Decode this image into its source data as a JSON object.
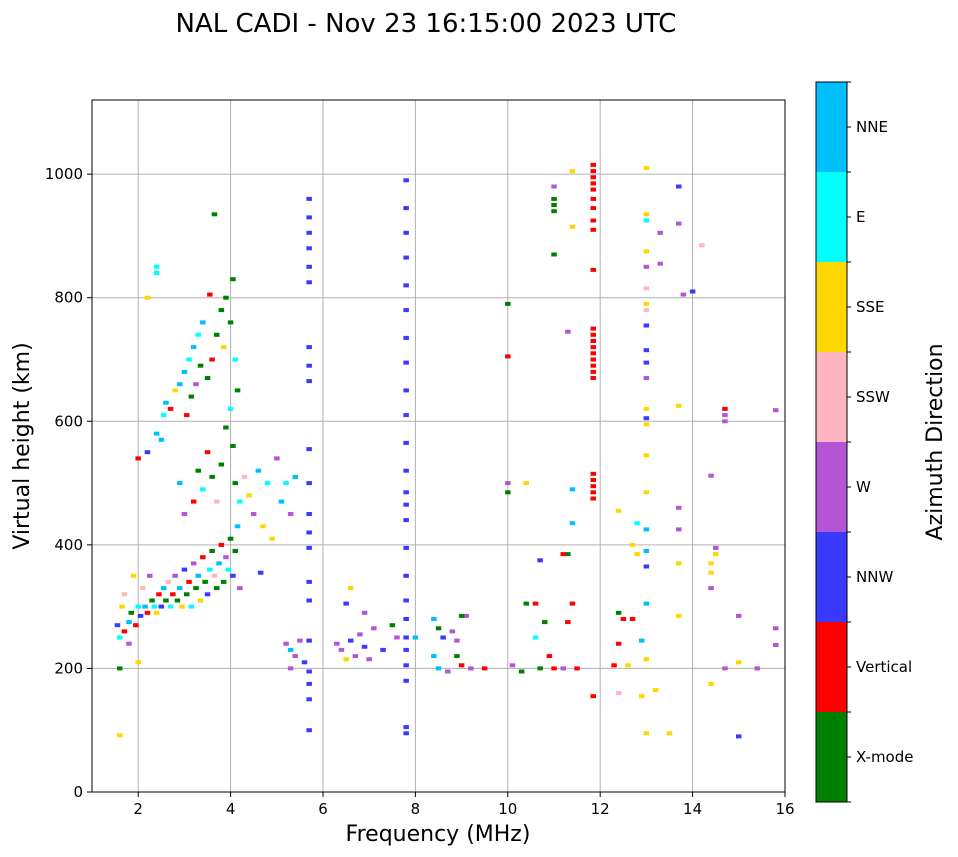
{
  "chart_data": {
    "type": "scatter",
    "title": "NAL CADI - Nov 23 16:15:00 2023 UTC",
    "xlabel": "Frequency (MHz)",
    "ylabel": "Virtual height (km)",
    "xlim": [
      1.0,
      16.0
    ],
    "ylim": [
      0,
      1120
    ],
    "xticks": [
      2,
      4,
      6,
      8,
      10,
      12,
      14,
      16
    ],
    "yticks": [
      0,
      200,
      400,
      600,
      800,
      1000
    ],
    "grid": true,
    "colorbar": {
      "label": "Azimuth Direction",
      "categories": [
        {
          "name": "X-mode",
          "color": "#008000"
        },
        {
          "name": "Vertical",
          "color": "#ff0000"
        },
        {
          "name": "NNW",
          "color": "#3a3aff"
        },
        {
          "name": "W",
          "color": "#b455d6"
        },
        {
          "name": "SSW",
          "color": "#ffb6c1"
        },
        {
          "name": "SSE",
          "color": "#ffd700"
        },
        {
          "name": "E",
          "color": "#00ffff"
        },
        {
          "name": "NNE",
          "color": "#00bfff"
        }
      ]
    },
    "points": [
      {
        "f": 1.6,
        "h": 92,
        "c": 5
      },
      {
        "f": 1.6,
        "h": 200,
        "c": 0
      },
      {
        "f": 1.55,
        "h": 270,
        "c": 2
      },
      {
        "f": 1.6,
        "h": 250,
        "c": 6
      },
      {
        "f": 1.65,
        "h": 300,
        "c": 5
      },
      {
        "f": 1.7,
        "h": 260,
        "c": 1
      },
      {
        "f": 1.7,
        "h": 320,
        "c": 4
      },
      {
        "f": 1.8,
        "h": 275,
        "c": 7
      },
      {
        "f": 1.8,
        "h": 240,
        "c": 3
      },
      {
        "f": 1.85,
        "h": 290,
        "c": 0
      },
      {
        "f": 1.9,
        "h": 350,
        "c": 5
      },
      {
        "f": 1.95,
        "h": 270,
        "c": 1
      },
      {
        "f": 2.0,
        "h": 210,
        "c": 5
      },
      {
        "f": 2.0,
        "h": 300,
        "c": 6
      },
      {
        "f": 2.05,
        "h": 285,
        "c": 2
      },
      {
        "f": 2.1,
        "h": 330,
        "c": 4
      },
      {
        "f": 2.15,
        "h": 300,
        "c": 7
      },
      {
        "f": 2.2,
        "h": 290,
        "c": 1
      },
      {
        "f": 2.25,
        "h": 350,
        "c": 3
      },
      {
        "f": 2.3,
        "h": 310,
        "c": 0
      },
      {
        "f": 2.35,
        "h": 300,
        "c": 6
      },
      {
        "f": 2.4,
        "h": 290,
        "c": 5
      },
      {
        "f": 2.45,
        "h": 320,
        "c": 1
      },
      {
        "f": 2.5,
        "h": 300,
        "c": 2
      },
      {
        "f": 2.55,
        "h": 330,
        "c": 7
      },
      {
        "f": 2.6,
        "h": 310,
        "c": 0
      },
      {
        "f": 2.65,
        "h": 340,
        "c": 4
      },
      {
        "f": 2.7,
        "h": 300,
        "c": 6
      },
      {
        "f": 2.75,
        "h": 320,
        "c": 1
      },
      {
        "f": 2.8,
        "h": 350,
        "c": 3
      },
      {
        "f": 2.85,
        "h": 310,
        "c": 0
      },
      {
        "f": 2.9,
        "h": 330,
        "c": 7
      },
      {
        "f": 2.95,
        "h": 300,
        "c": 5
      },
      {
        "f": 3.0,
        "h": 360,
        "c": 2
      },
      {
        "f": 3.05,
        "h": 320,
        "c": 0
      },
      {
        "f": 3.1,
        "h": 340,
        "c": 1
      },
      {
        "f": 3.15,
        "h": 300,
        "c": 6
      },
      {
        "f": 3.2,
        "h": 370,
        "c": 3
      },
      {
        "f": 3.25,
        "h": 330,
        "c": 0
      },
      {
        "f": 3.3,
        "h": 350,
        "c": 7
      },
      {
        "f": 3.35,
        "h": 310,
        "c": 5
      },
      {
        "f": 3.4,
        "h": 380,
        "c": 1
      },
      {
        "f": 3.45,
        "h": 340,
        "c": 0
      },
      {
        "f": 3.5,
        "h": 320,
        "c": 2
      },
      {
        "f": 3.55,
        "h": 360,
        "c": 6
      },
      {
        "f": 3.6,
        "h": 390,
        "c": 0
      },
      {
        "f": 3.65,
        "h": 350,
        "c": 4
      },
      {
        "f": 3.7,
        "h": 330,
        "c": 0
      },
      {
        "f": 3.75,
        "h": 370,
        "c": 7
      },
      {
        "f": 3.8,
        "h": 400,
        "c": 1
      },
      {
        "f": 3.85,
        "h": 340,
        "c": 0
      },
      {
        "f": 3.9,
        "h": 380,
        "c": 3
      },
      {
        "f": 3.95,
        "h": 360,
        "c": 6
      },
      {
        "f": 4.0,
        "h": 410,
        "c": 0
      },
      {
        "f": 4.05,
        "h": 350,
        "c": 2
      },
      {
        "f": 4.1,
        "h": 390,
        "c": 0
      },
      {
        "f": 4.15,
        "h": 430,
        "c": 7
      },
      {
        "f": 4.2,
        "h": 330,
        "c": 3
      },
      {
        "f": 2.0,
        "h": 540,
        "c": 1
      },
      {
        "f": 2.2,
        "h": 550,
        "c": 2
      },
      {
        "f": 2.4,
        "h": 580,
        "c": 7
      },
      {
        "f": 2.5,
        "h": 570,
        "c": 7
      },
      {
        "f": 2.55,
        "h": 610,
        "c": 6
      },
      {
        "f": 2.6,
        "h": 630,
        "c": 7
      },
      {
        "f": 2.7,
        "h": 620,
        "c": 1
      },
      {
        "f": 2.8,
        "h": 650,
        "c": 5
      },
      {
        "f": 2.9,
        "h": 660,
        "c": 7
      },
      {
        "f": 3.0,
        "h": 680,
        "c": 7
      },
      {
        "f": 3.05,
        "h": 610,
        "c": 1
      },
      {
        "f": 3.1,
        "h": 700,
        "c": 6
      },
      {
        "f": 3.15,
        "h": 640,
        "c": 0
      },
      {
        "f": 3.2,
        "h": 720,
        "c": 7
      },
      {
        "f": 3.25,
        "h": 660,
        "c": 3
      },
      {
        "f": 3.3,
        "h": 740,
        "c": 6
      },
      {
        "f": 3.35,
        "h": 690,
        "c": 0
      },
      {
        "f": 3.4,
        "h": 760,
        "c": 7
      },
      {
        "f": 3.5,
        "h": 670,
        "c": 0
      },
      {
        "f": 3.6,
        "h": 700,
        "c": 1
      },
      {
        "f": 3.7,
        "h": 740,
        "c": 0
      },
      {
        "f": 3.8,
        "h": 780,
        "c": 0
      },
      {
        "f": 3.85,
        "h": 720,
        "c": 5
      },
      {
        "f": 3.9,
        "h": 800,
        "c": 0
      },
      {
        "f": 4.0,
        "h": 760,
        "c": 0
      },
      {
        "f": 4.05,
        "h": 830,
        "c": 0
      },
      {
        "f": 4.1,
        "h": 700,
        "c": 6
      },
      {
        "f": 4.15,
        "h": 650,
        "c": 0
      },
      {
        "f": 3.55,
        "h": 805,
        "c": 1
      },
      {
        "f": 3.65,
        "h": 935,
        "c": 0
      },
      {
        "f": 2.2,
        "h": 800,
        "c": 5
      },
      {
        "f": 2.4,
        "h": 850,
        "c": 6
      },
      {
        "f": 2.4,
        "h": 840,
        "c": 6
      },
      {
        "f": 2.9,
        "h": 500,
        "c": 7
      },
      {
        "f": 3.0,
        "h": 450,
        "c": 3
      },
      {
        "f": 3.2,
        "h": 470,
        "c": 1
      },
      {
        "f": 3.3,
        "h": 520,
        "c": 0
      },
      {
        "f": 3.4,
        "h": 490,
        "c": 6
      },
      {
        "f": 3.5,
        "h": 550,
        "c": 1
      },
      {
        "f": 3.6,
        "h": 510,
        "c": 0
      },
      {
        "f": 3.7,
        "h": 470,
        "c": 4
      },
      {
        "f": 3.8,
        "h": 530,
        "c": 0
      },
      {
        "f": 3.9,
        "h": 590,
        "c": 0
      },
      {
        "f": 4.0,
        "h": 620,
        "c": 6
      },
      {
        "f": 4.05,
        "h": 560,
        "c": 0
      },
      {
        "f": 4.1,
        "h": 500,
        "c": 0
      },
      {
        "f": 4.2,
        "h": 470,
        "c": 6
      },
      {
        "f": 4.3,
        "h": 510,
        "c": 4
      },
      {
        "f": 4.4,
        "h": 480,
        "c": 5
      },
      {
        "f": 4.5,
        "h": 450,
        "c": 3
      },
      {
        "f": 4.6,
        "h": 520,
        "c": 7
      },
      {
        "f": 4.7,
        "h": 430,
        "c": 5
      },
      {
        "f": 4.8,
        "h": 500,
        "c": 6
      },
      {
        "f": 4.9,
        "h": 410,
        "c": 5
      },
      {
        "f": 5.0,
        "h": 540,
        "c": 3
      },
      {
        "f": 5.1,
        "h": 470,
        "c": 7
      },
      {
        "f": 5.2,
        "h": 500,
        "c": 6
      },
      {
        "f": 5.3,
        "h": 450,
        "c": 3
      },
      {
        "f": 5.4,
        "h": 510,
        "c": 7
      },
      {
        "f": 4.65,
        "h": 355,
        "c": 2
      },
      {
        "f": 5.2,
        "h": 240,
        "c": 3
      },
      {
        "f": 5.3,
        "h": 230,
        "c": 7
      },
      {
        "f": 5.4,
        "h": 220,
        "c": 3
      },
      {
        "f": 5.5,
        "h": 245,
        "c": 3
      },
      {
        "f": 5.6,
        "h": 210,
        "c": 2
      },
      {
        "f": 5.3,
        "h": 200,
        "c": 3
      },
      {
        "f": 6.3,
        "h": 240,
        "c": 3
      },
      {
        "f": 6.4,
        "h": 230,
        "c": 3
      },
      {
        "f": 6.5,
        "h": 215,
        "c": 5
      },
      {
        "f": 6.6,
        "h": 245,
        "c": 2
      },
      {
        "f": 6.7,
        "h": 220,
        "c": 3
      },
      {
        "f": 6.8,
        "h": 255,
        "c": 3
      },
      {
        "f": 6.9,
        "h": 235,
        "c": 2
      },
      {
        "f": 7.0,
        "h": 215,
        "c": 3
      },
      {
        "f": 7.1,
        "h": 265,
        "c": 3
      },
      {
        "f": 6.6,
        "h": 330,
        "c": 5
      },
      {
        "f": 6.5,
        "h": 305,
        "c": 2
      },
      {
        "f": 6.9,
        "h": 290,
        "c": 3
      },
      {
        "f": 7.5,
        "h": 270,
        "c": 0
      },
      {
        "f": 7.6,
        "h": 250,
        "c": 3
      },
      {
        "f": 7.3,
        "h": 230,
        "c": 2
      },
      {
        "f": 8.0,
        "h": 250,
        "c": 7
      },
      {
        "f": 8.4,
        "h": 280,
        "c": 7
      },
      {
        "f": 8.5,
        "h": 265,
        "c": 0
      },
      {
        "f": 8.6,
        "h": 250,
        "c": 2
      },
      {
        "f": 8.4,
        "h": 220,
        "c": 7
      },
      {
        "f": 8.5,
        "h": 200,
        "c": 7
      },
      {
        "f": 8.7,
        "h": 195,
        "c": 3
      },
      {
        "f": 8.8,
        "h": 260,
        "c": 3
      },
      {
        "f": 8.9,
        "h": 220,
        "c": 0
      },
      {
        "f": 9.0,
        "h": 205,
        "c": 1
      },
      {
        "f": 9.1,
        "h": 285,
        "c": 3
      },
      {
        "f": 9.2,
        "h": 200,
        "c": 3
      },
      {
        "f": 9.0,
        "h": 285,
        "c": 0
      },
      {
        "f": 8.9,
        "h": 245,
        "c": 3
      },
      {
        "f": 9.5,
        "h": 200,
        "c": 1
      },
      {
        "f": 10.1,
        "h": 205,
        "c": 3
      },
      {
        "f": 10.3,
        "h": 195,
        "c": 0
      },
      {
        "f": 10.4,
        "h": 305,
        "c": 0
      },
      {
        "f": 10.6,
        "h": 305,
        "c": 1
      },
      {
        "f": 10.7,
        "h": 200,
        "c": 0
      },
      {
        "f": 10.8,
        "h": 275,
        "c": 0
      },
      {
        "f": 10.9,
        "h": 220,
        "c": 1
      },
      {
        "f": 11.0,
        "h": 200,
        "c": 1
      },
      {
        "f": 11.2,
        "h": 200,
        "c": 3
      },
      {
        "f": 11.3,
        "h": 385,
        "c": 0
      },
      {
        "f": 11.4,
        "h": 305,
        "c": 1
      },
      {
        "f": 11.3,
        "h": 275,
        "c": 1
      },
      {
        "f": 11.5,
        "h": 200,
        "c": 1
      },
      {
        "f": 10.7,
        "h": 375,
        "c": 2
      },
      {
        "f": 10.6,
        "h": 250,
        "c": 6
      },
      {
        "f": 12.3,
        "h": 205,
        "c": 1
      },
      {
        "f": 12.4,
        "h": 290,
        "c": 0
      },
      {
        "f": 12.5,
        "h": 280,
        "c": 1
      },
      {
        "f": 12.4,
        "h": 240,
        "c": 1
      },
      {
        "f": 12.6,
        "h": 205,
        "c": 5
      },
      {
        "f": 12.4,
        "h": 160,
        "c": 4
      },
      {
        "f": 12.7,
        "h": 280,
        "c": 1
      },
      {
        "f": 12.9,
        "h": 245,
        "c": 7
      },
      {
        "f": 13.0,
        "h": 215,
        "c": 5
      },
      {
        "f": 12.9,
        "h": 155,
        "c": 5
      },
      {
        "f": 13.2,
        "h": 165,
        "c": 5
      },
      {
        "f": 13.0,
        "h": 95,
        "c": 5
      },
      {
        "f": 13.5,
        "h": 95,
        "c": 5
      },
      {
        "f": 13.0,
        "h": 305,
        "c": 7
      },
      {
        "f": 13.0,
        "h": 365,
        "c": 2
      },
      {
        "f": 12.8,
        "h": 385,
        "c": 5
      },
      {
        "f": 13.0,
        "h": 390,
        "c": 7
      },
      {
        "f": 12.7,
        "h": 400,
        "c": 5
      },
      {
        "f": 13.0,
        "h": 425,
        "c": 7
      },
      {
        "f": 12.8,
        "h": 435,
        "c": 6
      },
      {
        "f": 12.4,
        "h": 455,
        "c": 5
      },
      {
        "f": 13.0,
        "h": 485,
        "c": 5
      },
      {
        "f": 13.0,
        "h": 545,
        "c": 5
      },
      {
        "f": 13.0,
        "h": 595,
        "c": 5
      },
      {
        "f": 13.0,
        "h": 605,
        "c": 2
      },
      {
        "f": 13.0,
        "h": 620,
        "c": 5
      },
      {
        "f": 13.0,
        "h": 670,
        "c": 3
      },
      {
        "f": 13.0,
        "h": 695,
        "c": 2
      },
      {
        "f": 13.0,
        "h": 715,
        "c": 2
      },
      {
        "f": 13.0,
        "h": 755,
        "c": 2
      },
      {
        "f": 13.0,
        "h": 780,
        "c": 4
      },
      {
        "f": 13.0,
        "h": 790,
        "c": 5
      },
      {
        "f": 13.0,
        "h": 815,
        "c": 4
      },
      {
        "f": 13.0,
        "h": 850,
        "c": 3
      },
      {
        "f": 13.0,
        "h": 875,
        "c": 5
      },
      {
        "f": 13.0,
        "h": 925,
        "c": 6
      },
      {
        "f": 13.0,
        "h": 935,
        "c": 5
      },
      {
        "f": 13.3,
        "h": 905,
        "c": 3
      },
      {
        "f": 13.3,
        "h": 855,
        "c": 3
      },
      {
        "f": 13.0,
        "h": 1010,
        "c": 5
      },
      {
        "f": 13.7,
        "h": 980,
        "c": 2
      },
      {
        "f": 13.7,
        "h": 920,
        "c": 3
      },
      {
        "f": 14.2,
        "h": 885,
        "c": 4
      },
      {
        "f": 13.8,
        "h": 805,
        "c": 3
      },
      {
        "f": 14.0,
        "h": 810,
        "c": 2
      },
      {
        "f": 13.7,
        "h": 625,
        "c": 5
      },
      {
        "f": 13.7,
        "h": 460,
        "c": 3
      },
      {
        "f": 13.7,
        "h": 425,
        "c": 3
      },
      {
        "f": 13.7,
        "h": 370,
        "c": 5
      },
      {
        "f": 13.7,
        "h": 285,
        "c": 5
      },
      {
        "f": 14.4,
        "h": 512,
        "c": 3
      },
      {
        "f": 14.5,
        "h": 395,
        "c": 3
      },
      {
        "f": 14.5,
        "h": 385,
        "c": 5
      },
      {
        "f": 14.4,
        "h": 370,
        "c": 5
      },
      {
        "f": 14.4,
        "h": 355,
        "c": 5
      },
      {
        "f": 14.4,
        "h": 330,
        "c": 3
      },
      {
        "f": 14.4,
        "h": 175,
        "c": 5
      },
      {
        "f": 14.7,
        "h": 200,
        "c": 3
      },
      {
        "f": 14.7,
        "h": 620,
        "c": 1
      },
      {
        "f": 14.7,
        "h": 610,
        "c": 3
      },
      {
        "f": 14.7,
        "h": 600,
        "c": 3
      },
      {
        "f": 15.0,
        "h": 285,
        "c": 3
      },
      {
        "f": 15.0,
        "h": 210,
        "c": 5
      },
      {
        "f": 15.0,
        "h": 90,
        "c": 2
      },
      {
        "f": 15.4,
        "h": 200,
        "c": 3
      },
      {
        "f": 15.8,
        "h": 618,
        "c": 3
      },
      {
        "f": 15.8,
        "h": 265,
        "c": 3
      },
      {
        "f": 15.8,
        "h": 238,
        "c": 3
      },
      {
        "f": 10.0,
        "h": 790,
        "c": 0
      },
      {
        "f": 10.0,
        "h": 705,
        "c": 1
      },
      {
        "f": 10.0,
        "h": 500,
        "c": 3
      },
      {
        "f": 10.0,
        "h": 485,
        "c": 0
      },
      {
        "f": 10.4,
        "h": 500,
        "c": 5
      },
      {
        "f": 11.0,
        "h": 870,
        "c": 0
      },
      {
        "f": 11.0,
        "h": 980,
        "c": 3
      },
      {
        "f": 11.3,
        "h": 745,
        "c": 3
      },
      {
        "f": 11.4,
        "h": 490,
        "c": 7
      },
      {
        "f": 11.4,
        "h": 435,
        "c": 7
      },
      {
        "f": 11.2,
        "h": 385,
        "c": 1
      },
      {
        "f": 11.4,
        "h": 1005,
        "c": 5
      },
      {
        "f": 11.4,
        "h": 915,
        "c": 5
      }
    ],
    "columns": [
      {
        "f": 5.7,
        "c": 2,
        "hs": [
          100,
          150,
          175,
          195,
          245,
          310,
          340,
          395,
          420,
          450,
          500,
          555,
          665,
          690,
          720,
          825,
          850,
          880,
          905,
          930,
          960
        ]
      },
      {
        "f": 7.8,
        "c": 2,
        "hs": [
          95,
          105,
          180,
          205,
          230,
          250,
          280,
          310,
          350,
          395,
          440,
          465,
          485,
          520,
          565,
          610,
          650,
          695,
          735,
          780,
          820,
          865,
          905,
          945,
          990
        ]
      },
      {
        "f": 11.0,
        "c": 0,
        "hs": [
          940,
          950,
          960
        ]
      },
      {
        "f": 11.85,
        "c": 1,
        "hs": [
          155,
          475,
          485,
          495,
          505,
          515,
          670,
          680,
          690,
          700,
          710,
          720,
          730,
          740,
          750,
          845,
          910,
          925,
          945,
          960,
          975,
          985,
          995,
          1005,
          1015
        ]
      }
    ]
  },
  "colorbar_tick_labels": [
    "X-mode",
    "Vertical",
    "NNW",
    "W",
    "SSW",
    "SSE",
    "E",
    "NNE"
  ]
}
